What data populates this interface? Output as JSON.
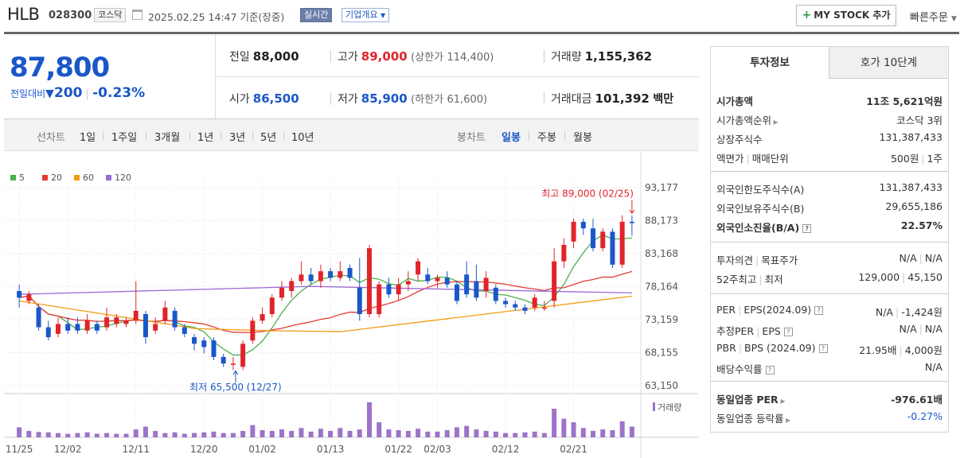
{
  "header": {
    "name": "HLB",
    "code": "028300",
    "market": "코스닥",
    "datetime": "2025.02.25 14:47  기준(장중)",
    "realtime": "실시간",
    "company_overview": "기업개요",
    "mystock": "MY STOCK 추가",
    "quick_order": "빠른주문"
  },
  "price": {
    "current": "87,800",
    "change_label": "전일대비",
    "change": "200",
    "change_pct": "-0.23%"
  },
  "stats": {
    "prev_label": "전일",
    "prev": "88,000",
    "high_label": "고가",
    "high": "89,000",
    "upper_label": "(상한가",
    "upper": "114,400)",
    "volume_label": "거래량",
    "volume": "1,155,362",
    "open_label": "시가",
    "open": "86,500",
    "low_label": "저가",
    "low": "85,900",
    "lower_label": "(하한가",
    "lower": "61,600)",
    "amount_label": "거래대금",
    "amount": "101,392",
    "amount_unit": "백만"
  },
  "line_tabs": {
    "label": "선차트",
    "items": [
      "1일",
      "1주일",
      "3개월",
      "1년",
      "3년",
      "5년",
      "10년"
    ]
  },
  "candle_tabs": {
    "label": "봉차트",
    "items": [
      "일봉",
      "주봉",
      "월봉"
    ]
  },
  "chart_data": {
    "type": "candlestick",
    "legend": [
      "5",
      "20",
      "60",
      "120"
    ],
    "ma_colors": [
      "#4caf50",
      "#e53935",
      "#f39c12",
      "#9c6ad6"
    ],
    "y_ticks": [
      "93,177",
      "88,173",
      "83,168",
      "78,164",
      "73,159",
      "68,155",
      "63,150"
    ],
    "y_range": [
      63150,
      93177
    ],
    "x_labels": [
      {
        "label": "11/25",
        "i": 0
      },
      {
        "label": "12/02",
        "i": 5
      },
      {
        "label": "12/11",
        "i": 12
      },
      {
        "label": "12/20",
        "i": 19
      },
      {
        "label": "01/02",
        "i": 25
      },
      {
        "label": "01/13",
        "i": 32
      },
      {
        "label": "01/22",
        "i": 39
      },
      {
        "label": "02/03",
        "i": 43
      },
      {
        "label": "02/12",
        "i": 50
      },
      {
        "label": "02/21",
        "i": 57
      }
    ],
    "candles": [
      [
        77500,
        76500,
        78500,
        75000
      ],
      [
        76000,
        77000,
        77500,
        75500
      ],
      [
        75000,
        72000,
        75500,
        71500
      ],
      [
        72000,
        70500,
        73000,
        70000
      ],
      [
        71000,
        72500,
        73500,
        70500
      ],
      [
        72500,
        71500,
        73500,
        71000
      ],
      [
        72500,
        71500,
        73500,
        71000
      ],
      [
        71500,
        73000,
        74000,
        71000
      ],
      [
        72500,
        71500,
        73000,
        71000
      ],
      [
        72000,
        73500,
        75000,
        71500
      ],
      [
        72500,
        73500,
        74000,
        72000
      ],
      [
        72500,
        73000,
        73500,
        72000
      ],
      [
        73000,
        74500,
        79000,
        72500
      ],
      [
        74000,
        70500,
        74500,
        69500
      ],
      [
        71500,
        72500,
        73500,
        71000
      ],
      [
        73000,
        75000,
        76000,
        72500
      ],
      [
        74500,
        72000,
        75000,
        71500
      ],
      [
        72000,
        71000,
        72500,
        70500
      ],
      [
        70500,
        69500,
        71000,
        68500
      ],
      [
        70000,
        69000,
        70500,
        68000
      ],
      [
        70000,
        67500,
        70500,
        67000
      ],
      [
        67500,
        66500,
        68000,
        66000
      ],
      [
        66500,
        66500,
        67500,
        65500
      ],
      [
        66000,
        69500,
        70000,
        65500
      ],
      [
        70000,
        73000,
        73500,
        69500
      ],
      [
        73000,
        74000,
        75000,
        72500
      ],
      [
        74000,
        76500,
        77000,
        73500
      ],
      [
        76500,
        78000,
        79000,
        76000
      ],
      [
        77500,
        79000,
        79500,
        76500
      ],
      [
        79000,
        80000,
        82000,
        78500
      ],
      [
        80000,
        79000,
        81000,
        78500
      ],
      [
        79000,
        80500,
        81500,
        78000
      ],
      [
        80500,
        79500,
        81000,
        79000
      ],
      [
        79500,
        80500,
        82000,
        79000
      ],
      [
        81000,
        79500,
        81500,
        79000
      ],
      [
        78000,
        74000,
        82500,
        73000
      ],
      [
        74000,
        84000,
        84500,
        73500
      ],
      [
        74000,
        78500,
        79000,
        73500
      ],
      [
        78500,
        77000,
        79500,
        76500
      ],
      [
        77000,
        78500,
        79500,
        76000
      ],
      [
        78500,
        79000,
        80500,
        77500
      ],
      [
        80000,
        82000,
        82500,
        79000
      ],
      [
        80000,
        79000,
        81000,
        78500
      ],
      [
        79000,
        79500,
        80000,
        78000
      ],
      [
        79500,
        78500,
        80500,
        78000
      ],
      [
        78500,
        76000,
        79000,
        75500
      ],
      [
        80000,
        77000,
        82000,
        76500
      ],
      [
        79000,
        76500,
        81500,
        76000
      ],
      [
        77500,
        79500,
        80500,
        76500
      ],
      [
        78000,
        76000,
        78500,
        75500
      ],
      [
        76000,
        75500,
        76500,
        75000
      ],
      [
        75500,
        75000,
        76000,
        74500
      ],
      [
        75000,
        74500,
        75500,
        74000
      ],
      [
        75000,
        76500,
        77000,
        74500
      ],
      [
        75000,
        75000,
        76000,
        74500
      ],
      [
        76000,
        82000,
        84000,
        75000
      ],
      [
        82000,
        84500,
        85500,
        81000
      ],
      [
        85000,
        88000,
        88500,
        84000
      ],
      [
        88000,
        87000,
        88500,
        86000
      ],
      [
        87000,
        84000,
        88500,
        83500
      ],
      [
        84000,
        86500,
        87000,
        83500
      ],
      [
        86500,
        81500,
        87000,
        81000
      ],
      [
        81500,
        88000,
        89000,
        81000
      ],
      [
        88000,
        87800,
        89000,
        85900
      ]
    ],
    "volumes": [
      0.28,
      0.18,
      0.15,
      0.14,
      0.12,
      0.1,
      0.12,
      0.14,
      0.1,
      0.12,
      0.1,
      0.1,
      0.22,
      0.3,
      0.18,
      0.12,
      0.14,
      0.1,
      0.12,
      0.14,
      0.16,
      0.12,
      0.12,
      0.18,
      0.34,
      0.2,
      0.18,
      0.22,
      0.18,
      0.26,
      0.16,
      0.24,
      0.18,
      0.26,
      0.18,
      0.22,
      0.98,
      0.42,
      0.22,
      0.2,
      0.18,
      0.24,
      0.16,
      0.16,
      0.2,
      0.28,
      0.32,
      0.22,
      0.18,
      0.16,
      0.12,
      0.12,
      0.14,
      0.16,
      0.12,
      0.8,
      0.52,
      0.42,
      0.26,
      0.18,
      0.22,
      0.2,
      0.45,
      0.3
    ],
    "high_marker": "최고 89,000 (02/25)",
    "low_marker": "최저 65,500 (12/27)",
    "volume_label": "거래량"
  },
  "right_panel": {
    "tab1": "투자정보",
    "tab2": "호가 10단계",
    "g1": [
      {
        "l": "시가총액",
        "r": "11조 5,621억원",
        "bold": true
      },
      {
        "l": "시가총액순위",
        "r": "코스닥 3위",
        "arrow": true
      },
      {
        "l": "상장주식수",
        "r": "131,387,433"
      },
      {
        "l": "액면가",
        "l2": "매매단위",
        "r": "500원",
        "r2": "1주"
      }
    ],
    "g2": [
      {
        "l": "외국인한도주식수(A)",
        "r": "131,387,433"
      },
      {
        "l": "외국인보유주식수(B)",
        "r": "29,655,186"
      },
      {
        "l": "외국인소진율(B/A)",
        "r": "22.57%",
        "bold": true,
        "q": true
      }
    ],
    "g3": [
      {
        "l": "투자의견",
        "l2": "목표주가",
        "r": "N/A",
        "r2": "N/A"
      },
      {
        "l": "52주최고",
        "l2": "최저",
        "r": "129,000",
        "r2": "45,150"
      }
    ],
    "g4": [
      {
        "l": "PER",
        "l2": "EPS(2024.09)",
        "q": true,
        "r": "N/A",
        "r2": "-1,424원"
      },
      {
        "l": "추정PER",
        "l2": "EPS",
        "q": true,
        "r": "N/A",
        "r2": "N/A"
      },
      {
        "l": "PBR",
        "l2": "BPS (2024.09)",
        "q": true,
        "r": "21.95배",
        "r2": "4,000원"
      },
      {
        "l": "배당수익률",
        "q": true,
        "r": "N/A"
      }
    ],
    "g5": [
      {
        "l": "동일업종 PER",
        "r": "-976.61배",
        "bold": true,
        "arrow": true
      },
      {
        "l": "동일업종 등락률",
        "r": "-0.27%",
        "arrow": true,
        "blue": true
      }
    ]
  }
}
